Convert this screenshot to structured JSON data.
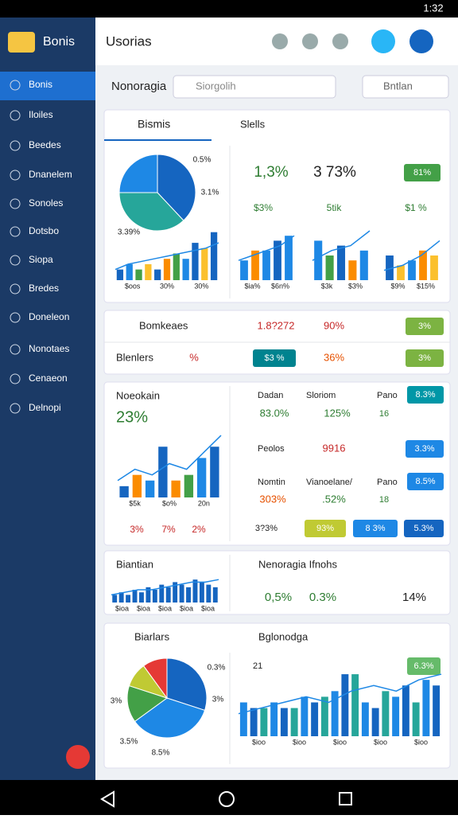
{
  "status_bar": {
    "time": "1:32"
  },
  "sidebar": {
    "title": "Bonis",
    "items": [
      "Bonis",
      "Iloiles",
      "Beedes",
      "Dnanelem",
      "Sonoles",
      "Dotsbo",
      "Siopa",
      "Bredes",
      "Doneleon",
      "Nonotaes",
      "Cenaeon",
      "Delnopi"
    ]
  },
  "header": {
    "title": "Usorias"
  },
  "toolbar": {
    "label": "Nonoragia",
    "search": "Siorgolih",
    "dropdown": "Bntlan"
  },
  "overview": {
    "tabs": [
      "Bismis",
      "Slells"
    ],
    "pie": {
      "values": [
        38,
        37,
        25
      ],
      "colors": [
        "#1565c0",
        "#26a69a",
        "#1e88e5"
      ],
      "labels": [
        "0.5%",
        "3.1%",
        "3.39%"
      ]
    },
    "stats": [
      "1,3%",
      "3 73%"
    ],
    "badge": "81%",
    "sublabels": [
      "$3%",
      "5tik",
      "$1 %"
    ],
    "charts": [
      {
        "values": [
          2,
          3,
          2,
          3,
          2,
          4,
          5,
          4,
          7,
          6,
          9
        ],
        "colors": [
          "#1565c0",
          "#1e88e5",
          "#43a047",
          "#fbc02d",
          "#1565c0",
          "#fb8c00",
          "#43a047",
          "#1e88e5",
          "#1565c0",
          "#fbc02d",
          "#1565c0"
        ],
        "line": [
          2,
          3,
          3.5,
          4,
          4.5,
          5,
          5.5,
          6,
          7
        ],
        "ylim": [
          0,
          10
        ],
        "labels": [
          "$oos",
          "30%",
          "30%"
        ]
      },
      {
        "values": [
          4,
          6,
          6,
          8,
          9
        ],
        "colors": [
          "#1e88e5",
          "#fb8c00",
          "#1e88e5",
          "#1565c0",
          "#1e88e5"
        ],
        "line": [
          4,
          5,
          6,
          7,
          9
        ],
        "ylim": [
          0,
          10
        ],
        "labels": [
          "$ia%",
          "$6n%"
        ]
      },
      {
        "values": [
          8,
          5,
          7,
          4,
          6
        ],
        "colors": [
          "#1e88e5",
          "#43a047",
          "#1565c0",
          "#fb8c00",
          "#1e88e5"
        ],
        "line": [
          4,
          6,
          7,
          10
        ],
        "ylim": [
          0,
          10
        ],
        "labels": [
          "$3k",
          "$3%"
        ]
      },
      {
        "values": [
          5,
          3,
          4,
          6,
          5
        ],
        "colors": [
          "#1565c0",
          "#fbc02d",
          "#1e88e5",
          "#fb8c00",
          "#fbc02d"
        ],
        "line": [
          2,
          3,
          5,
          8
        ],
        "ylim": [
          0,
          10
        ],
        "labels": [
          "$9%",
          "$15%"
        ]
      }
    ]
  },
  "summary": {
    "rows": [
      [
        "Bomkeaes",
        "1.8?272",
        "90%",
        "3%"
      ],
      [
        "Blenlers",
        "%",
        "$3 %",
        "36%",
        "3%"
      ]
    ]
  },
  "activity": {
    "title": "Noeokain",
    "value": "23%",
    "chart": {
      "values": [
        2,
        4,
        3,
        9,
        3,
        4,
        7,
        9
      ],
      "colors": [
        "#1565c0",
        "#fb8c00",
        "#1e88e5",
        "#1565c0",
        "#fb8c00",
        "#43a047",
        "#1e88e5",
        "#1565c0"
      ],
      "line": [
        3,
        5,
        4,
        6,
        5,
        8,
        11
      ],
      "ylim": [
        0,
        12
      ],
      "labels": [
        "$5k",
        "$o%",
        "20n"
      ]
    },
    "footer": [
      "3%",
      "7%",
      "2%"
    ],
    "rows": [
      [
        "Dadan",
        "Sloriom",
        "Pano",
        "8.3%",
        "83.0%",
        "125%",
        "16"
      ],
      [
        "Peolos",
        "9916",
        "3.3%"
      ],
      [
        "Nomtin",
        "Vianoelane/",
        "Pano",
        "8.5%",
        "303%",
        ".52%",
        "18"
      ]
    ],
    "bottom": [
      "3?3%",
      "93%",
      "8 3%",
      "5.3%"
    ]
  },
  "trend": {
    "title": "Biantian",
    "chart": {
      "values": [
        3,
        4,
        3,
        5,
        4,
        6,
        5,
        7,
        6,
        8,
        7,
        6,
        9,
        8,
        7,
        6
      ],
      "colors": [
        "#1565c0"
      ],
      "line": [
        3,
        4,
        5,
        5,
        6,
        7,
        8,
        8,
        9
      ],
      "ylim": [
        0,
        10
      ],
      "labels": [
        "$ioa",
        "$ioa",
        "$ioa",
        "$ioa",
        "$ioa"
      ]
    },
    "heading": "Nenoragia Ifnohs",
    "stats": [
      "0,5%",
      "0.3%",
      "14%"
    ]
  },
  "breakdown": {
    "title": "Biarlars",
    "pie": {
      "values": [
        30,
        35,
        15,
        10,
        10
      ],
      "colors": [
        "#1565c0",
        "#1e88e5",
        "#43a047",
        "#c0ca33",
        "#e53935"
      ],
      "labels": [
        "0.3%",
        "3%",
        "3%",
        "3.5%",
        "8.5%"
      ]
    },
    "heading": "Bglonodga",
    "number": "21",
    "badge": "6.3%",
    "chart": {
      "values": [
        6,
        5,
        5,
        6,
        5,
        5,
        7,
        6,
        7,
        8,
        11,
        11,
        6,
        5,
        8,
        7,
        9,
        6,
        10,
        9
      ],
      "colors": [
        "#1e88e5",
        "#1565c0",
        "#26a69a"
      ],
      "line": [
        4,
        5,
        6,
        7,
        6,
        8,
        9,
        8,
        10,
        11
      ],
      "ylim": [
        0,
        12
      ],
      "labels": [
        "$ioo",
        "$ioo",
        "$ioo",
        "$ioo",
        "$ioo"
      ]
    }
  }
}
